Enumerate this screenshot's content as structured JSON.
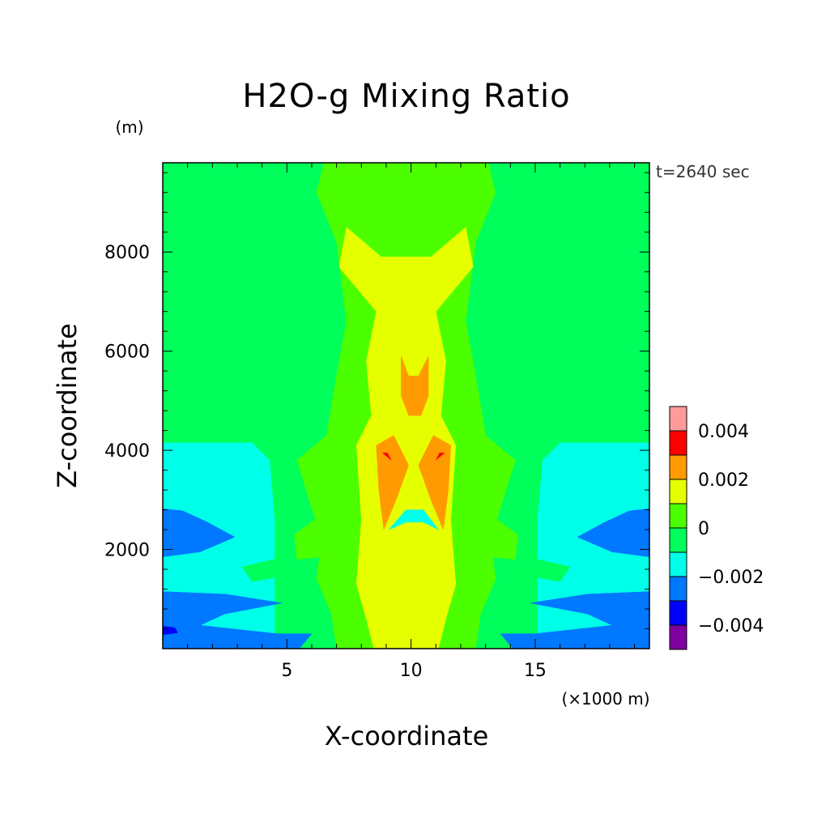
{
  "chart_data": {
    "type": "heatmap",
    "subtype": "filled-contour",
    "title": "H2O-g Mixing Ratio",
    "xlabel": "X-coordinate",
    "ylabel": "Z-coordinate",
    "x_unit": "(×1000 m)",
    "y_unit": "(m)",
    "time_label": "t=2640 sec",
    "xlim": [
      0,
      19.6
    ],
    "ylim": [
      0,
      9800
    ],
    "x_ticks": [
      5,
      10,
      15
    ],
    "y_ticks": [
      2000,
      4000,
      6000,
      8000
    ],
    "grid": false,
    "legend_position": "right",
    "colorbar": {
      "levels": [
        -0.005,
        -0.004,
        -0.003,
        -0.002,
        -0.001,
        0,
        0.001,
        0.002,
        0.003,
        0.004,
        0.005
      ],
      "colors": [
        "#7f00a0",
        "#0000ff",
        "#0078ff",
        "#00ffe8",
        "#00ff5a",
        "#4cff00",
        "#e6ff00",
        "#ff9b00",
        "#ff0000",
        "#ff9b9b"
      ],
      "tick_labels": [
        {
          "value": -0.004,
          "label": "−0.004"
        },
        {
          "value": -0.002,
          "label": "−0.002"
        },
        {
          "value": 0,
          "label": "0"
        },
        {
          "value": 0.002,
          "label": "0.002"
        },
        {
          "value": 0.004,
          "label": "0.004"
        }
      ]
    },
    "regions": [
      {
        "value": 0.0005,
        "color": "#00ff5a",
        "points": [
          [
            0,
            0
          ],
          [
            19.6,
            0
          ],
          [
            19.6,
            9800
          ],
          [
            0,
            9800
          ]
        ]
      },
      {
        "value": -0.0015,
        "color": "#00ffe8",
        "points": [
          [
            0,
            0
          ],
          [
            4.5,
            0
          ],
          [
            4.5,
            2600
          ],
          [
            4.3,
            3800
          ],
          [
            3.6,
            4150
          ],
          [
            0,
            4150
          ]
        ]
      },
      {
        "value": -0.0015,
        "color": "#00ffe8",
        "points": [
          [
            19.6,
            0
          ],
          [
            15.1,
            0
          ],
          [
            15.1,
            2600
          ],
          [
            15.3,
            3800
          ],
          [
            16.0,
            4150
          ],
          [
            19.6,
            4150
          ]
        ]
      },
      {
        "value": -0.0025,
        "color": "#0078ff",
        "points": [
          [
            0,
            1850
          ],
          [
            1.5,
            1950
          ],
          [
            2.9,
            2250
          ],
          [
            1.8,
            2550
          ],
          [
            0.8,
            2780
          ],
          [
            0,
            2820
          ]
        ]
      },
      {
        "value": -0.0025,
        "color": "#0078ff",
        "points": [
          [
            19.6,
            1850
          ],
          [
            18.1,
            1950
          ],
          [
            16.7,
            2250
          ],
          [
            17.8,
            2550
          ],
          [
            18.8,
            2780
          ],
          [
            19.6,
            2820
          ]
        ]
      },
      {
        "value": -0.0025,
        "color": "#0078ff",
        "points": [
          [
            0,
            0
          ],
          [
            5.5,
            0
          ],
          [
            6.0,
            300
          ],
          [
            4.6,
            300
          ],
          [
            1.5,
            470
          ],
          [
            2.5,
            700
          ],
          [
            4.8,
            920
          ],
          [
            2.5,
            1100
          ],
          [
            0,
            1150
          ]
        ]
      },
      {
        "value": -0.0025,
        "color": "#0078ff",
        "points": [
          [
            19.6,
            0
          ],
          [
            14.1,
            0
          ],
          [
            13.6,
            300
          ],
          [
            15.0,
            300
          ],
          [
            18.1,
            470
          ],
          [
            17.1,
            700
          ],
          [
            14.8,
            920
          ],
          [
            17.1,
            1100
          ],
          [
            19.6,
            1150
          ]
        ]
      },
      {
        "value": -0.0035,
        "color": "#0000ff",
        "points": [
          [
            0,
            280
          ],
          [
            0.6,
            320
          ],
          [
            0.5,
            420
          ],
          [
            0,
            450
          ]
        ]
      },
      {
        "value": 0.0005,
        "color": "#00ff5a",
        "points": [
          [
            3.6,
            1350
          ],
          [
            5.8,
            1550
          ],
          [
            4.5,
            1800
          ],
          [
            3.2,
            1650
          ]
        ]
      },
      {
        "value": 0.0005,
        "color": "#00ff5a",
        "points": [
          [
            16.0,
            1350
          ],
          [
            13.8,
            1550
          ],
          [
            15.1,
            1800
          ],
          [
            16.4,
            1650
          ]
        ]
      },
      {
        "value": 0.0015,
        "color": "#4cff00",
        "points": [
          [
            7.0,
            0
          ],
          [
            12.6,
            0
          ],
          [
            12.8,
            700
          ],
          [
            13.4,
            1400
          ],
          [
            13.2,
            2200
          ],
          [
            14.2,
            3800
          ],
          [
            13.0,
            4300
          ],
          [
            12.6,
            5500
          ],
          [
            12.2,
            6600
          ],
          [
            12.6,
            8200
          ],
          [
            13.4,
            9200
          ],
          [
            13.1,
            9800
          ],
          [
            6.5,
            9800
          ],
          [
            6.2,
            9200
          ],
          [
            7.0,
            8200
          ],
          [
            7.4,
            6600
          ],
          [
            7.0,
            5500
          ],
          [
            6.6,
            4300
          ],
          [
            5.4,
            3800
          ],
          [
            6.4,
            2200
          ],
          [
            6.2,
            1400
          ],
          [
            6.8,
            700
          ]
        ]
      },
      {
        "value": 0.0015,
        "color": "#4cff00",
        "points": [
          [
            5.4,
            1800
          ],
          [
            7.3,
            1900
          ],
          [
            8.0,
            2400
          ],
          [
            7.6,
            3000
          ],
          [
            6.4,
            2700
          ],
          [
            5.3,
            2300
          ]
        ]
      },
      {
        "value": 0.0015,
        "color": "#4cff00",
        "points": [
          [
            14.2,
            1800
          ],
          [
            12.3,
            1900
          ],
          [
            11.6,
            2400
          ],
          [
            12.0,
            3000
          ],
          [
            13.2,
            2700
          ],
          [
            14.3,
            2300
          ]
        ]
      },
      {
        "value": 0.0025,
        "color": "#e6ff00",
        "points": [
          [
            8.5,
            0
          ],
          [
            11.1,
            0
          ],
          [
            11.4,
            600
          ],
          [
            11.8,
            1300
          ],
          [
            11.6,
            2600
          ],
          [
            11.8,
            4100
          ],
          [
            11.2,
            4700
          ],
          [
            11.4,
            5800
          ],
          [
            11.0,
            6800
          ],
          [
            12.5,
            7700
          ],
          [
            12.2,
            8500
          ],
          [
            10.8,
            7900
          ],
          [
            8.8,
            7900
          ],
          [
            7.4,
            8500
          ],
          [
            7.1,
            7700
          ],
          [
            8.6,
            6800
          ],
          [
            8.2,
            5800
          ],
          [
            8.4,
            4700
          ],
          [
            7.8,
            4100
          ],
          [
            8.0,
            2600
          ],
          [
            7.8,
            1300
          ],
          [
            8.2,
            600
          ]
        ]
      },
      {
        "value": -0.0015,
        "color": "#00ffe8",
        "points": [
          [
            9.1,
            2400
          ],
          [
            9.8,
            2800
          ],
          [
            10.5,
            2800
          ],
          [
            11.1,
            2400
          ],
          [
            10.5,
            2550
          ],
          [
            9.8,
            2550
          ]
        ]
      },
      {
        "value": 0.0035,
        "color": "#ff9b00",
        "points": [
          [
            9.6,
            5100
          ],
          [
            9.9,
            4700
          ],
          [
            10.4,
            4700
          ],
          [
            10.7,
            5100
          ],
          [
            10.7,
            5900
          ],
          [
            10.3,
            5500
          ],
          [
            9.9,
            5500
          ],
          [
            9.6,
            5900
          ]
        ]
      },
      {
        "value": 0.0035,
        "color": "#ff9b00",
        "points": [
          [
            8.6,
            4100
          ],
          [
            9.3,
            4300
          ],
          [
            9.9,
            3700
          ],
          [
            9.4,
            3000
          ],
          [
            8.9,
            2400
          ],
          [
            8.7,
            3200
          ]
        ]
      },
      {
        "value": 0.0035,
        "color": "#ff9b00",
        "points": [
          [
            11.6,
            4100
          ],
          [
            10.9,
            4300
          ],
          [
            10.3,
            3700
          ],
          [
            10.8,
            3000
          ],
          [
            11.3,
            2400
          ],
          [
            11.5,
            3200
          ]
        ]
      },
      {
        "value": 0.0045,
        "color": "#ff0000",
        "points": [
          [
            8.85,
            3950
          ],
          [
            9.2,
            3800
          ],
          [
            9.05,
            3950
          ]
        ]
      },
      {
        "value": 0.0045,
        "color": "#ff0000",
        "points": [
          [
            11.35,
            3950
          ],
          [
            11.0,
            3800
          ],
          [
            11.15,
            3950
          ]
        ]
      }
    ]
  }
}
